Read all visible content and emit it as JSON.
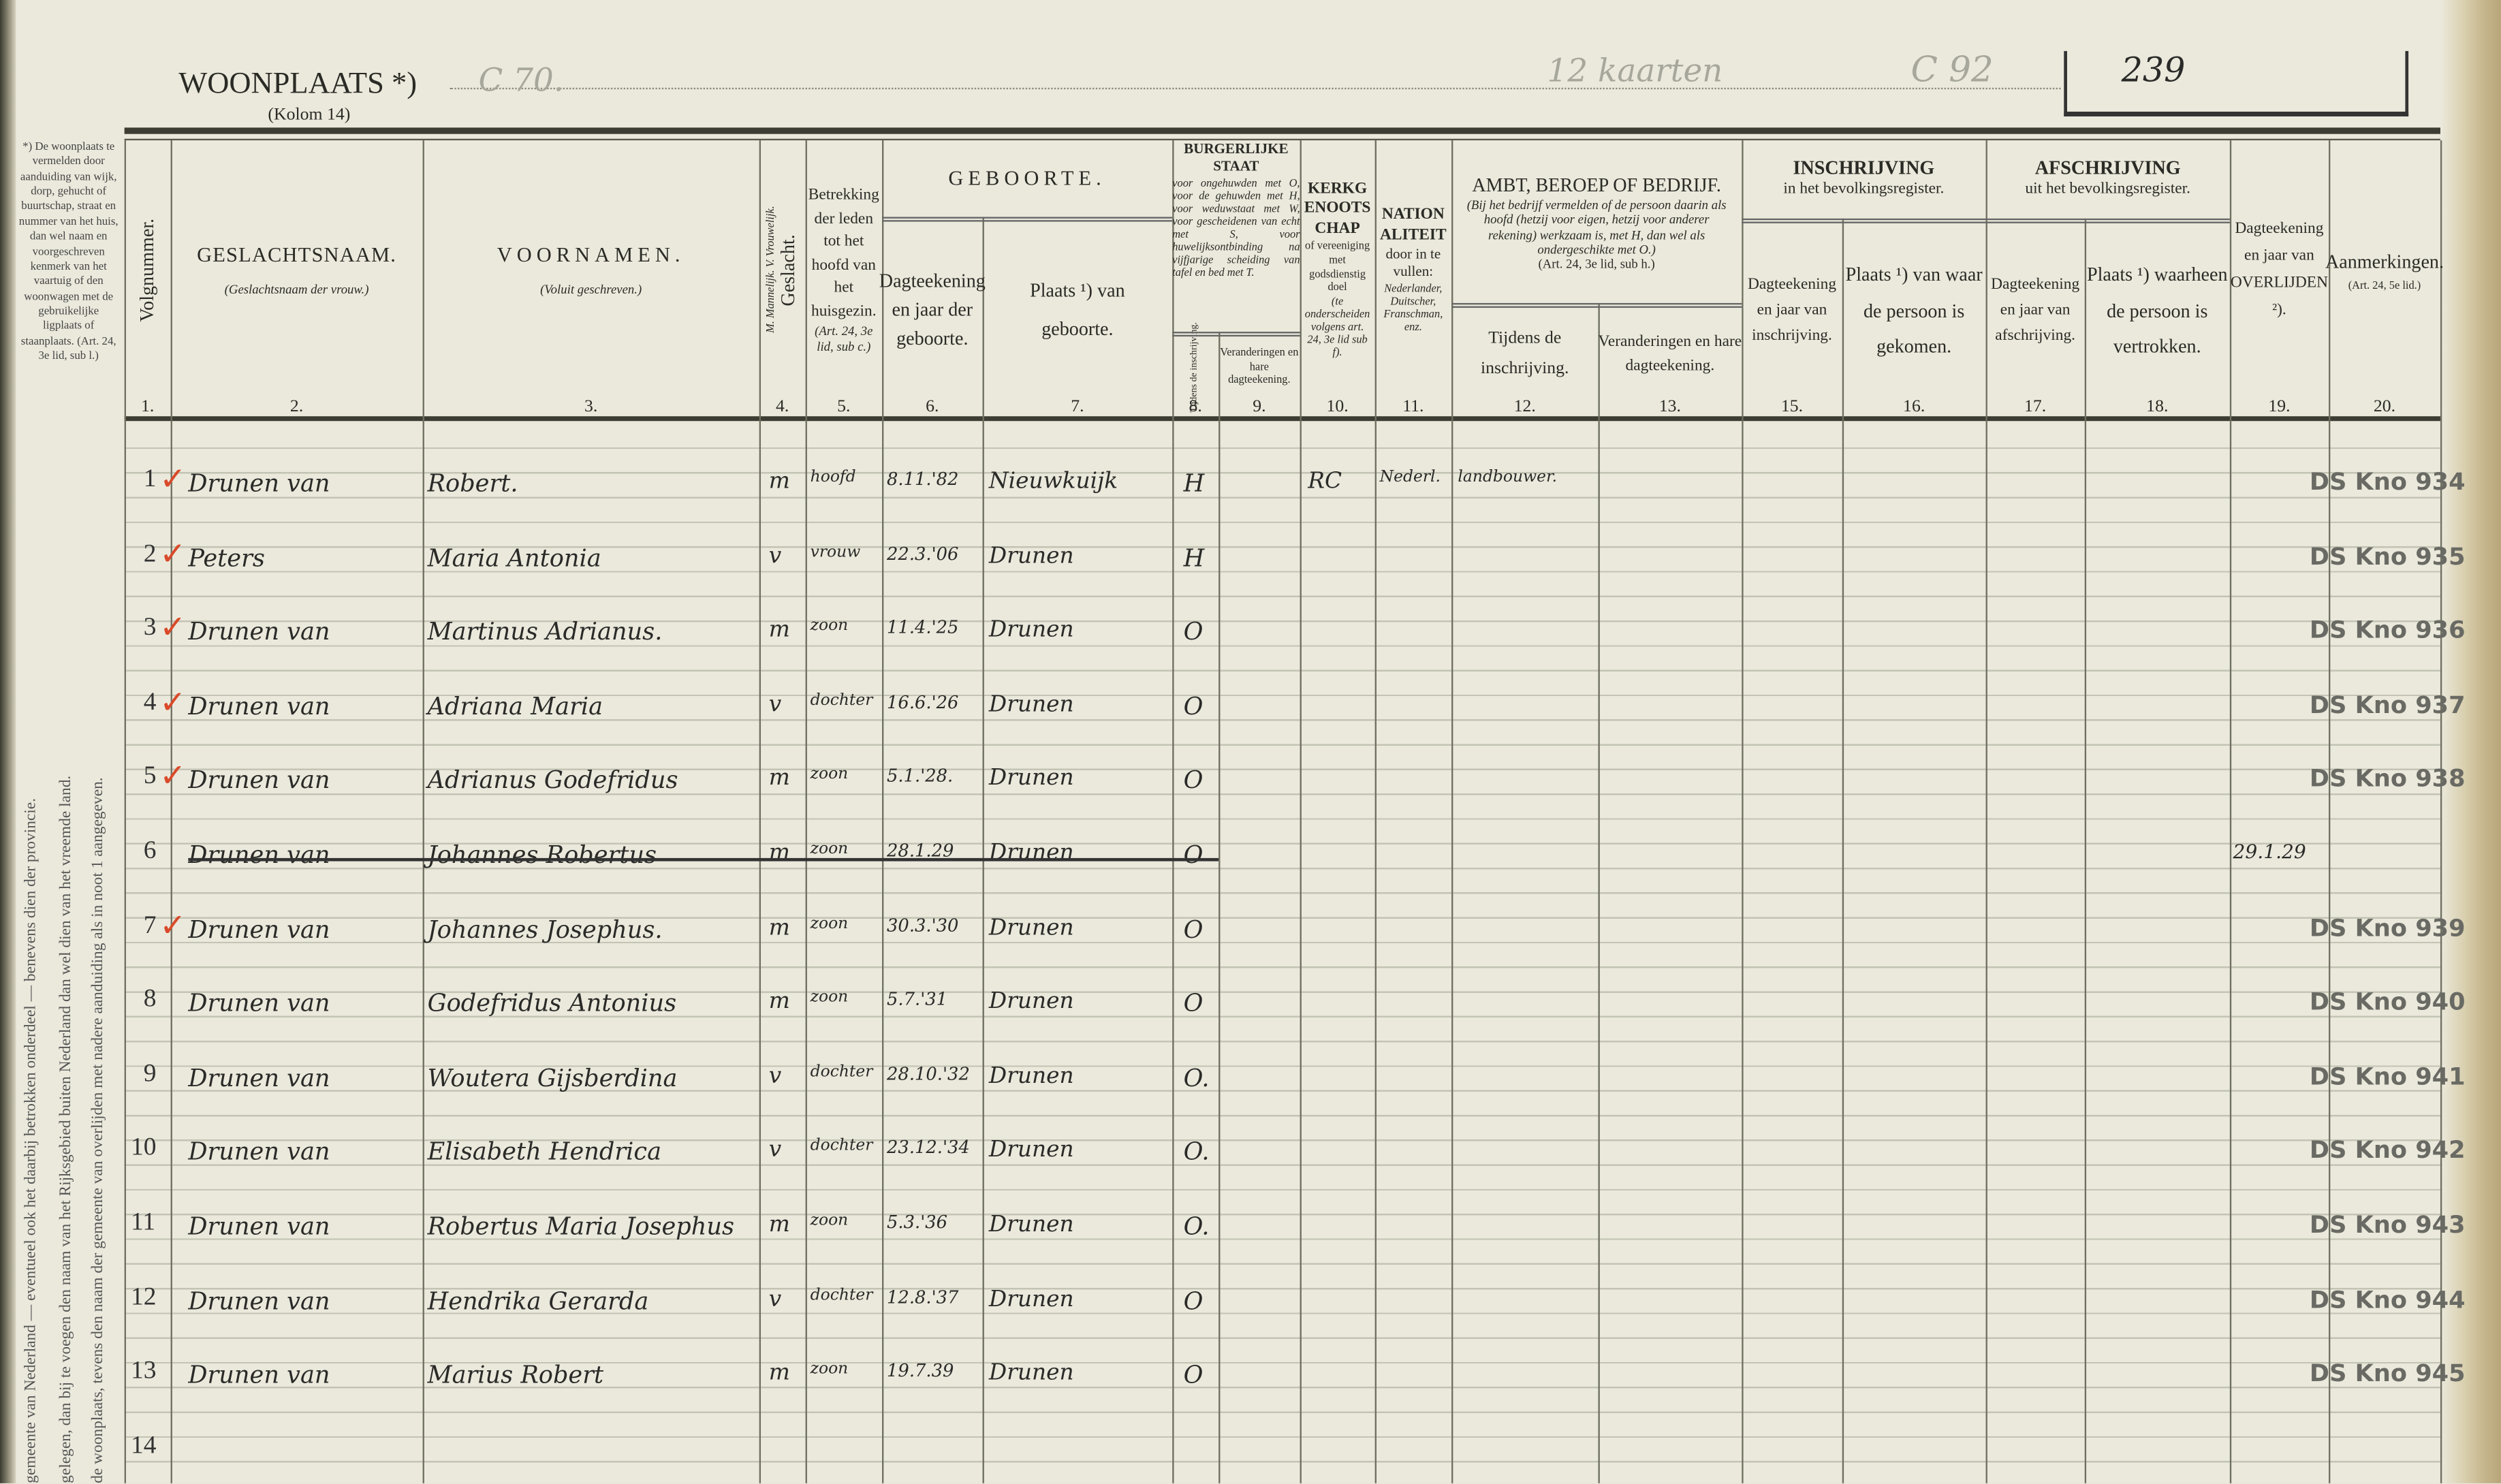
{
  "header": {
    "title": "WOONPLAATS *)",
    "subtitle": "(Kolom 14)",
    "pencil_address": "C 70.",
    "pencil_cards": "12 kaarten",
    "pencil_code": "C 92",
    "page_number": "239"
  },
  "margin_notes": {
    "top": "*) De woonplaats te vermelden door aanduiding van wijk, dorp, gehucht of buurtschap, straat en nummer van het huis, dan wel naam en voorgeschreven kenmerk van het vaartuig of den woonwagen met de gebruikelijke ligplaats of staanplaats. (Art. 24, 3e lid, sub l.)",
    "note1": "gemeente van Nederland — eventueel ook het daarbij betrokken onderdeel — benevens dien der provincie.",
    "note2": "gelegen, dan bij te voegen den naam van het Rijksgebied buiten Nederland dan wel dien van het vreemde land.",
    "note3": "de woonplaats, tevens den naam der gemeente van overlijden met nadere aanduiding als in noot 1 aangegeven."
  },
  "columns": {
    "c1": {
      "num": "1.",
      "title": "Volgnummer."
    },
    "c2": {
      "num": "2.",
      "title": "GESLACHTSNAAM.",
      "note": "(Geslachtsnaam der vrouw.)"
    },
    "c3": {
      "num": "3.",
      "title": "VOORNAMEN.",
      "note": "(Voluit geschreven.)"
    },
    "c4": {
      "num": "4.",
      "title": "Geslacht.",
      "note": "M. Mannelijk. V. Vrouwelijk."
    },
    "c5": {
      "num": "5.",
      "title": "Betrekking der leden tot het hoofd van het huisgezin.",
      "note": "(Art. 24, 3e lid, sub c.)"
    },
    "geboorte": "GEBOORTE.",
    "c6": {
      "num": "6.",
      "title": "Dagteekening en jaar der geboorte."
    },
    "c7": {
      "num": "7.",
      "title": "Plaats ¹) van geboorte."
    },
    "burgerlijke": {
      "title": "BURGERLIJKE STAAT",
      "note": "voor ongehuwden met O, voor de gehuwden met H, voor weduwstaat met W, voor gescheidenen van echt met S, voor huwelijksontbinding na vijfjarige scheiding van tafel en bed met T."
    },
    "c8": {
      "num": "8.",
      "title": "Tijdens de inschrijving."
    },
    "c9": {
      "num": "9.",
      "title": "Veranderingen en hare dagteekening."
    },
    "c10": {
      "num": "10.",
      "title": "KERKGENOOTSCHAP",
      "note": "of vereeniging met godsdienstig doel",
      "note2": "(te onderscheiden volgens art. 24, 3e lid sub f)."
    },
    "c11": {
      "num": "11.",
      "title": "NATIONALITEIT",
      "note": "door in te vullen:",
      "note2": "Nederlander, Duitscher, Franschman, enz."
    },
    "beroep": {
      "title": "AMBT, BEROEP OF BEDRIJF.",
      "note": "(Bij het bedrijf vermelden of de persoon daarin als hoofd (hetzij voor eigen, hetzij voor anderer rekening) werkzaam is, met H, dan wel als ondergeschikte met O.)",
      "note2": "(Art. 24, 3e lid, sub h.)"
    },
    "c12": {
      "num": "12.",
      "title": "Tijdens de inschrijving."
    },
    "c13": {
      "num": "13.",
      "title": "Veranderingen en hare dagteekening."
    },
    "inschrijving": {
      "title": "INSCHRIJVING",
      "note": "in het bevolkingsregister."
    },
    "c15": {
      "num": "15.",
      "title": "Dagteekening en jaar van inschrijving."
    },
    "c16": {
      "num": "16.",
      "title": "Plaats ¹) van waar de persoon is gekomen."
    },
    "afschrijving": {
      "title": "AFSCHRIJVING",
      "note": "uit het bevolkingsregister."
    },
    "c17": {
      "num": "17.",
      "title": "Dagteekening en jaar van afschrijving."
    },
    "c18": {
      "num": "18.",
      "title": "Plaats ¹) waarheen de persoon is vertrokken."
    },
    "c19": {
      "num": "19.",
      "title": "Dagteekening en jaar van OVERLIJDEN ²)."
    },
    "c20": {
      "num": "20.",
      "title": "Aanmerkingen.",
      "note": "(Art. 24, 5e lid.)"
    }
  },
  "rows": [
    {
      "num": "1",
      "checked": true,
      "surname": "Drunen van",
      "firstnames": "Robert.",
      "sex": "m",
      "relation": "hoofd",
      "birthdate": "8.11.'82",
      "birthplace": "Nieuwkuijk",
      "civil": "H",
      "church": "RC",
      "nationality": "Nederl.",
      "occupation": "landbouwer.",
      "death": "",
      "remark": "DS Kno 934"
    },
    {
      "num": "2",
      "checked": true,
      "surname": "Peters",
      "firstnames": "Maria Antonia",
      "sex": "v",
      "relation": "vrouw",
      "birthdate": "22.3.'06",
      "birthplace": "Drunen",
      "civil": "H",
      "church": "",
      "nationality": "",
      "occupation": "",
      "death": "",
      "remark": "DS Kno 935"
    },
    {
      "num": "3",
      "checked": true,
      "surname": "Drunen van",
      "firstnames": "Martinus Adrianus.",
      "sex": "m",
      "relation": "zoon",
      "birthdate": "11.4.'25",
      "birthplace": "Drunen",
      "civil": "O",
      "church": "",
      "nationality": "",
      "occupation": "",
      "death": "",
      "remark": "DS Kno 936"
    },
    {
      "num": "4",
      "checked": true,
      "surname": "Drunen van",
      "firstnames": "Adriana Maria",
      "sex": "v",
      "relation": "dochter",
      "birthdate": "16.6.'26",
      "birthplace": "Drunen",
      "civil": "O",
      "church": "",
      "nationality": "",
      "occupation": "",
      "death": "",
      "remark": "DS Kno 937"
    },
    {
      "num": "5",
      "checked": true,
      "surname": "Drunen van",
      "firstnames": "Adrianus Godefridus",
      "sex": "m",
      "relation": "zoon",
      "birthdate": "5.1.'28.",
      "birthplace": "Drunen",
      "civil": "O",
      "church": "",
      "nationality": "",
      "occupation": "",
      "death": "",
      "remark": "DS Kno 938"
    },
    {
      "num": "6",
      "checked": false,
      "struck": true,
      "surname": "Drunen van",
      "firstnames": "Johannes Robertus",
      "sex": "m",
      "relation": "zoon",
      "birthdate": "28.1.29",
      "birthplace": "Drunen",
      "civil": "O",
      "church": "",
      "nationality": "",
      "occupation": "",
      "death": "29.1.29",
      "remark": ""
    },
    {
      "num": "7",
      "checked": true,
      "surname": "Drunen van",
      "firstnames": "Johannes Josephus.",
      "sex": "m",
      "relation": "zoon",
      "birthdate": "30.3.'30",
      "birthplace": "Drunen",
      "civil": "O",
      "church": "",
      "nationality": "",
      "occupation": "",
      "death": "",
      "remark": "DS Kno 939"
    },
    {
      "num": "8",
      "checked": false,
      "surname": "Drunen van",
      "firstnames": "Godefridus Antonius",
      "sex": "m",
      "relation": "zoon",
      "birthdate": "5.7.'31",
      "birthplace": "Drunen",
      "civil": "O",
      "church": "",
      "nationality": "",
      "occupation": "",
      "death": "",
      "remark": "DS Kno 940"
    },
    {
      "num": "9",
      "checked": false,
      "surname": "Drunen van",
      "firstnames": "Woutera Gijsberdina",
      "sex": "v",
      "relation": "dochter",
      "birthdate": "28.10.'32",
      "birthplace": "Drunen",
      "civil": "O.",
      "church": "",
      "nationality": "",
      "occupation": "",
      "death": "",
      "remark": "DS Kno 941"
    },
    {
      "num": "10",
      "checked": false,
      "surname": "Drunen van",
      "firstnames": "Elisabeth Hendrica",
      "sex": "v",
      "relation": "dochter",
      "birthdate": "23.12.'34",
      "birthplace": "Drunen",
      "civil": "O.",
      "church": "",
      "nationality": "",
      "occupation": "",
      "death": "",
      "remark": "DS Kno 942"
    },
    {
      "num": "11",
      "checked": false,
      "surname": "Drunen van",
      "firstnames": "Robertus Maria Josephus",
      "sex": "m",
      "relation": "zoon",
      "birthdate": "5.3.'36",
      "birthplace": "Drunen",
      "civil": "O.",
      "church": "",
      "nationality": "",
      "occupation": "",
      "death": "",
      "remark": "DS Kno 943"
    },
    {
      "num": "12",
      "checked": false,
      "surname": "Drunen van",
      "firstnames": "Hendrika Gerarda",
      "sex": "v",
      "relation": "dochter",
      "birthdate": "12.8.'37",
      "birthplace": "Drunen",
      "civil": "O",
      "church": "",
      "nationality": "",
      "occupation": "",
      "death": "",
      "remark": "DS Kno 944"
    },
    {
      "num": "13",
      "checked": false,
      "surname": "Drunen van",
      "firstnames": "Marius Robert",
      "sex": "m",
      "relation": "zoon",
      "birthdate": "19.7.39",
      "birthplace": "Drunen",
      "civil": "O",
      "church": "",
      "nationality": "",
      "occupation": "",
      "death": "",
      "remark": "DS Kno 945"
    },
    {
      "num": "14",
      "checked": false,
      "surname": "",
      "firstnames": "",
      "sex": "",
      "relation": "",
      "birthdate": "",
      "birthplace": "",
      "civil": "",
      "church": "",
      "nationality": "",
      "occupation": "",
      "death": "",
      "remark": ""
    }
  ],
  "colors": {
    "paper": "#ebe9dc",
    "ink": "#2a2a28",
    "check": "#d94a2a",
    "pencil": "#a7a79c"
  }
}
